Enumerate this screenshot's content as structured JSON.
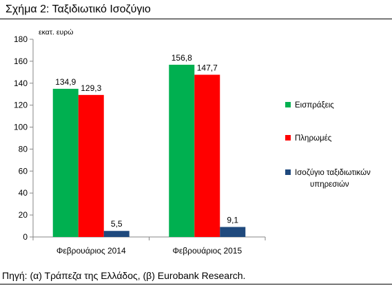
{
  "figure": {
    "title": "Σχήμα 2: Ταξιδιωτικό Ισοζύγιο",
    "source": "Πηγή: (α) Τράπεζα της Ελλάδος, (β) Eurobank Research."
  },
  "chart_data": {
    "type": "bar",
    "title": "",
    "xlabel": "",
    "ylabel": "",
    "unit_label": "εκατ. ευρώ",
    "categories": [
      "Φεβρουάριος 2014",
      "Φεβρουάριος 2015"
    ],
    "series": [
      {
        "name": "Εισπράξεις",
        "values": [
          134.9,
          156.8
        ],
        "labels": [
          "134,9",
          "156,8"
        ],
        "color": "#00b050"
      },
      {
        "name": "Πληρωμές",
        "values": [
          129.3,
          147.7
        ],
        "labels": [
          "129,3",
          "147,7"
        ],
        "color": "#ff0000"
      },
      {
        "name": "Ισοζύγιο ταξιδιωτικών υπηρεσιών",
        "values": [
          5.5,
          9.1
        ],
        "labels": [
          "5,5",
          "9,1"
        ],
        "color": "#1f497d"
      }
    ],
    "ylim": [
      0,
      180
    ],
    "yticks": [
      0,
      20,
      40,
      60,
      80,
      100,
      120,
      140,
      160,
      180
    ],
    "grid": false,
    "legend_position": "right"
  }
}
